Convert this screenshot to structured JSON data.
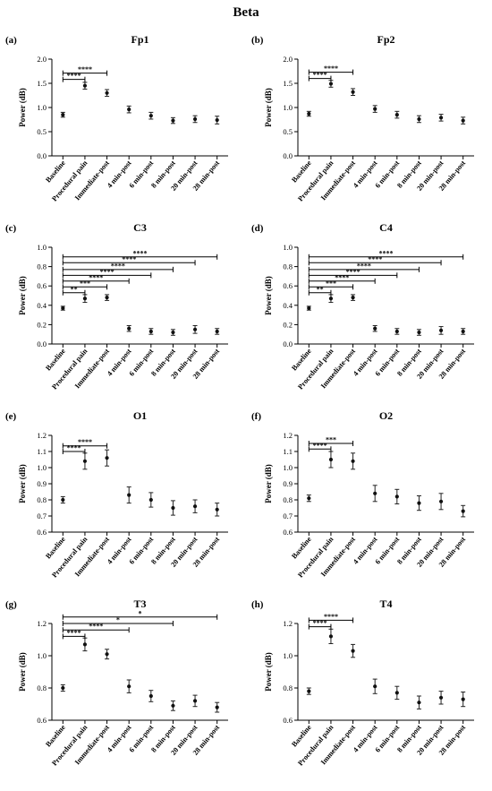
{
  "figure_title": "Beta",
  "chart_data": [
    {
      "panel": "(a)",
      "title": "Fp1",
      "type": "scatter",
      "ylabel": "Power (dB)",
      "ylim": [
        0,
        2.0
      ],
      "yticks": [
        0,
        0.5,
        1.0,
        1.5,
        2.0
      ],
      "ytick_labels": [
        "0.0",
        "0.5",
        "1.0",
        "1.5",
        "2.0"
      ],
      "categories": [
        "Baseline",
        "Procedural pain",
        "Immediate-post",
        "4 min-post",
        "6 min-post",
        "8 min-post",
        "20 min-post",
        "28 min-post"
      ],
      "values": [
        0.85,
        1.45,
        1.3,
        0.96,
        0.83,
        0.73,
        0.76,
        0.74
      ],
      "errors": [
        0.05,
        0.07,
        0.07,
        0.07,
        0.07,
        0.06,
        0.07,
        0.08
      ],
      "significance": [
        {
          "from": 0,
          "to": 1,
          "y": 1.58,
          "label": "****"
        },
        {
          "from": 0,
          "to": 2,
          "y": 1.71,
          "label": "****"
        }
      ]
    },
    {
      "panel": "(b)",
      "title": "Fp2",
      "type": "scatter",
      "ylabel": "Power (dB)",
      "ylim": [
        0,
        2.0
      ],
      "yticks": [
        0,
        0.5,
        1.0,
        1.5,
        2.0
      ],
      "ytick_labels": [
        "0.0",
        "0.5",
        "1.0",
        "1.5",
        "2.0"
      ],
      "categories": [
        "Baseline",
        "Procedural pain",
        "Immediate-post",
        "4 min-post",
        "6 min-post",
        "8 min-post",
        "20 min-post",
        "28 min-post"
      ],
      "values": [
        0.87,
        1.49,
        1.32,
        0.97,
        0.85,
        0.76,
        0.79,
        0.73
      ],
      "errors": [
        0.05,
        0.07,
        0.07,
        0.07,
        0.07,
        0.07,
        0.07,
        0.07
      ],
      "significance": [
        {
          "from": 0,
          "to": 1,
          "y": 1.6,
          "label": "****"
        },
        {
          "from": 0,
          "to": 2,
          "y": 1.73,
          "label": "****"
        }
      ]
    },
    {
      "panel": "(c)",
      "title": "C3",
      "type": "scatter",
      "ylabel": "Power (dB)",
      "ylim": [
        0,
        1.0
      ],
      "yticks": [
        0,
        0.2,
        0.4,
        0.6,
        0.8,
        1.0
      ],
      "ytick_labels": [
        "0.0",
        "0.2",
        "0.4",
        "0.6",
        "0.8",
        "1.0"
      ],
      "categories": [
        "Baseline",
        "Procedural pain",
        "Immediate-post",
        "4 min-post",
        "6 min-post",
        "8 min-post",
        "20 min-post",
        "28 min-post"
      ],
      "values": [
        0.37,
        0.47,
        0.48,
        0.16,
        0.13,
        0.12,
        0.15,
        0.13
      ],
      "errors": [
        0.02,
        0.04,
        0.03,
        0.03,
        0.03,
        0.03,
        0.04,
        0.03
      ],
      "significance": [
        {
          "from": 0,
          "to": 1,
          "y": 0.53,
          "label": "**"
        },
        {
          "from": 0,
          "to": 2,
          "y": 0.59,
          "label": "***"
        },
        {
          "from": 0,
          "to": 3,
          "y": 0.65,
          "label": "****"
        },
        {
          "from": 0,
          "to": 4,
          "y": 0.71,
          "label": "****"
        },
        {
          "from": 0,
          "to": 5,
          "y": 0.77,
          "label": "****"
        },
        {
          "from": 0,
          "to": 6,
          "y": 0.84,
          "label": "****"
        },
        {
          "from": 0,
          "to": 7,
          "y": 0.9,
          "label": "****"
        }
      ]
    },
    {
      "panel": "(d)",
      "title": "C4",
      "type": "scatter",
      "ylabel": "Power (dB)",
      "ylim": [
        0,
        1.0
      ],
      "yticks": [
        0,
        0.2,
        0.4,
        0.6,
        0.8,
        1.0
      ],
      "ytick_labels": [
        "0.0",
        "0.2",
        "0.4",
        "0.6",
        "0.8",
        "1.0"
      ],
      "categories": [
        "Baseline",
        "Procedural pain",
        "Immediate-post",
        "4 min-post",
        "6 min-post",
        "8 min-post",
        "20 min-post",
        "28 min-post"
      ],
      "values": [
        0.37,
        0.47,
        0.48,
        0.16,
        0.13,
        0.12,
        0.14,
        0.13
      ],
      "errors": [
        0.02,
        0.04,
        0.03,
        0.03,
        0.03,
        0.03,
        0.04,
        0.03
      ],
      "significance": [
        {
          "from": 0,
          "to": 1,
          "y": 0.53,
          "label": "**"
        },
        {
          "from": 0,
          "to": 2,
          "y": 0.59,
          "label": "***"
        },
        {
          "from": 0,
          "to": 3,
          "y": 0.65,
          "label": "****"
        },
        {
          "from": 0,
          "to": 4,
          "y": 0.71,
          "label": "****"
        },
        {
          "from": 0,
          "to": 5,
          "y": 0.77,
          "label": "****"
        },
        {
          "from": 0,
          "to": 6,
          "y": 0.84,
          "label": "****"
        },
        {
          "from": 0,
          "to": 7,
          "y": 0.9,
          "label": "****"
        }
      ]
    },
    {
      "panel": "(e)",
      "title": "O1",
      "type": "scatter",
      "ylabel": "Power (dB)",
      "ylim": [
        0.6,
        1.2
      ],
      "yticks": [
        0.6,
        0.7,
        0.8,
        0.9,
        1.0,
        1.1,
        1.2
      ],
      "ytick_labels": [
        "0.6",
        "0.7",
        "0.8",
        "0.9",
        "1.0",
        "1.1",
        "1.2"
      ],
      "categories": [
        "Baseline",
        "Procedural pain",
        "Immediate-post",
        "4 min-post",
        "6 min-post",
        "8 min-post",
        "20 min-post",
        "28 min-post"
      ],
      "values": [
        0.8,
        1.04,
        1.06,
        0.83,
        0.8,
        0.75,
        0.76,
        0.74
      ],
      "errors": [
        0.02,
        0.05,
        0.05,
        0.05,
        0.045,
        0.045,
        0.04,
        0.04
      ],
      "significance": [
        {
          "from": 0,
          "to": 1,
          "y": 1.1,
          "label": "****"
        },
        {
          "from": 0,
          "to": 2,
          "y": 1.135,
          "label": "****"
        }
      ]
    },
    {
      "panel": "(f)",
      "title": "O2",
      "type": "scatter",
      "ylabel": "Power (dB)",
      "ylim": [
        0.6,
        1.2
      ],
      "yticks": [
        0.6,
        0.7,
        0.8,
        0.9,
        1.0,
        1.1,
        1.2
      ],
      "ytick_labels": [
        "0.6",
        "0.7",
        "0.8",
        "0.9",
        "1.0",
        "1.1",
        "1.2"
      ],
      "categories": [
        "Baseline",
        "Procedural pain",
        "Immediate-post",
        "4 min-post",
        "6 min-post",
        "8 min-post",
        "20 min-post",
        "28 min-post"
      ],
      "values": [
        0.81,
        1.05,
        1.04,
        0.84,
        0.82,
        0.78,
        0.79,
        0.73
      ],
      "errors": [
        0.02,
        0.05,
        0.05,
        0.05,
        0.045,
        0.045,
        0.05,
        0.035
      ],
      "significance": [
        {
          "from": 0,
          "to": 1,
          "y": 1.115,
          "label": "****"
        },
        {
          "from": 0,
          "to": 2,
          "y": 1.15,
          "label": "***"
        }
      ]
    },
    {
      "panel": "(g)",
      "title": "T3",
      "type": "scatter",
      "ylabel": "Power (dB)",
      "ylim": [
        0.6,
        1.2
      ],
      "yticks": [
        0.6,
        0.8,
        1.0,
        1.2
      ],
      "ytick_labels": [
        "0.6",
        "0.8",
        "1.0",
        "1.2"
      ],
      "categories": [
        "Baseline",
        "Procedural pain",
        "Immediate-post",
        "4 min-post",
        "6 min-post",
        "8 min-post",
        "20 min-post",
        "28 min-post"
      ],
      "values": [
        0.8,
        1.07,
        1.01,
        0.81,
        0.75,
        0.69,
        0.72,
        0.68
      ],
      "errors": [
        0.02,
        0.04,
        0.03,
        0.04,
        0.035,
        0.03,
        0.035,
        0.03
      ],
      "significance": [
        {
          "from": 0,
          "to": 1,
          "y": 1.12,
          "label": "****"
        },
        {
          "from": 0,
          "to": 3,
          "y": 1.16,
          "label": "****"
        },
        {
          "from": 0,
          "to": 5,
          "y": 1.2,
          "label": "*"
        },
        {
          "from": 0,
          "to": 7,
          "y": 1.24,
          "label": "*"
        }
      ]
    },
    {
      "panel": "(h)",
      "title": "T4",
      "type": "scatter",
      "ylabel": "Power (dB)",
      "ylim": [
        0.6,
        1.2
      ],
      "yticks": [
        0.6,
        0.8,
        1.0,
        1.2
      ],
      "ytick_labels": [
        "0.6",
        "0.8",
        "1.0",
        "1.2"
      ],
      "categories": [
        "Baseline",
        "Procedural pain",
        "Immediate-post",
        "4 min-post",
        "6 min-post",
        "8 min-post",
        "20 min-post",
        "28 min-post"
      ],
      "values": [
        0.78,
        1.12,
        1.03,
        0.81,
        0.77,
        0.71,
        0.74,
        0.73
      ],
      "errors": [
        0.02,
        0.045,
        0.04,
        0.045,
        0.04,
        0.04,
        0.04,
        0.045
      ],
      "significance": [
        {
          "from": 0,
          "to": 1,
          "y": 1.18,
          "label": "****"
        },
        {
          "from": 0,
          "to": 2,
          "y": 1.22,
          "label": "****"
        }
      ]
    }
  ]
}
